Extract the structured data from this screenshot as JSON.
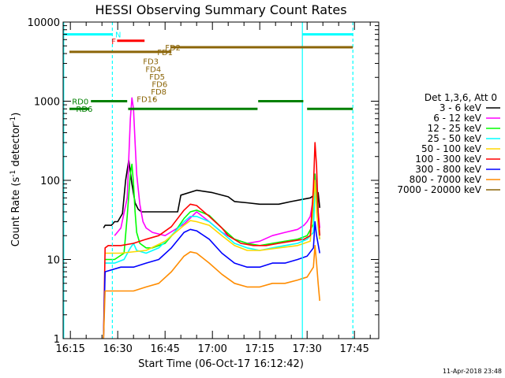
{
  "chart_data": {
    "type": "line",
    "title": "HESSI Observing Summary Count Rates",
    "xlabel": "Start Time (06-Oct-17 16:12:42)",
    "ylabel_parts": [
      "Count Rate (s",
      "-1",
      " detector",
      "-1",
      ")"
    ],
    "yscale": "log",
    "ylim": [
      1,
      10000
    ],
    "xlim_minutes": [
      -2.3,
      97.7
    ],
    "x_ticks": [
      {
        "label": "16:15",
        "minute": 0
      },
      {
        "label": "16:30",
        "minute": 15
      },
      {
        "label": "16:45",
        "minute": 30
      },
      {
        "label": "17:00",
        "minute": 45
      },
      {
        "label": "17:15",
        "minute": 60
      },
      {
        "label": "17:30",
        "minute": 75
      },
      {
        "label": "17:45",
        "minute": 90
      }
    ],
    "y_ticks": [
      {
        "label": "1",
        "value": 1
      },
      {
        "label": "10",
        "value": 10
      },
      {
        "label": "100",
        "value": 100
      },
      {
        "label": "1000",
        "value": 1000
      },
      {
        "label": "10000",
        "value": 10000
      }
    ],
    "legend": {
      "title": "Det 1,3,6, Att 0",
      "position": "right",
      "entries": [
        {
          "name": "3 - 6 keV",
          "color": "#000000"
        },
        {
          "name": "6 - 12 keV",
          "color": "#ff00ff"
        },
        {
          "name": "12 - 25 keV",
          "color": "#00ff00"
        },
        {
          "name": "25 - 50 keV",
          "color": "#00ffff"
        },
        {
          "name": "50 - 100 keV",
          "color": "#ffd700"
        },
        {
          "name": "100 - 300 keV",
          "color": "#ff0000"
        },
        {
          "name": "300 - 800 keV",
          "color": "#0000ff"
        },
        {
          "name": "800 - 7000 keV",
          "color": "#ff8c00"
        },
        {
          "name": "7000 - 20000 keV",
          "color": "#8b6508"
        }
      ]
    },
    "series": [
      {
        "name": "3 - 6 keV",
        "color": "#000000",
        "x": [
          10.5,
          11,
          13,
          14,
          15,
          16.5,
          17.5,
          18.5,
          19.5,
          20.5,
          21.5,
          22.5,
          23.5,
          24,
          26,
          30,
          34,
          35,
          40,
          45,
          50,
          52,
          56,
          60,
          66,
          70,
          74,
          76,
          77,
          77.5,
          78.5,
          79
        ],
        "y": [
          25,
          27,
          27,
          30,
          30,
          38,
          100,
          180,
          90,
          52,
          43,
          40,
          40,
          40,
          40,
          40,
          40,
          65,
          75,
          70,
          62,
          54,
          52,
          50,
          50,
          54,
          58,
          60,
          64,
          65,
          70,
          45
        ]
      },
      {
        "name": "6 - 12 keV",
        "color": "#ff00ff",
        "x": [
          14,
          16,
          18,
          19,
          19.5,
          20,
          20.5,
          21,
          22,
          23,
          24,
          26,
          30,
          36,
          40,
          44,
          48,
          52,
          56,
          60,
          64,
          68,
          72,
          74,
          75,
          76,
          77,
          77.5,
          78,
          78.5,
          79
        ],
        "y": [
          20,
          25,
          60,
          600,
          1100,
          800,
          300,
          120,
          50,
          30,
          25,
          22,
          20,
          28,
          40,
          30,
          22,
          18,
          16,
          17,
          20,
          22,
          24,
          27,
          30,
          35,
          60,
          120,
          80,
          40,
          25
        ]
      },
      {
        "name": "12 - 25 keV",
        "color": "#00ff00",
        "x": [
          11,
          14,
          17,
          18,
          19,
          19.5,
          20,
          20.5,
          21,
          22,
          24,
          26,
          30,
          33,
          36,
          38,
          40,
          44,
          48,
          52,
          56,
          60,
          64,
          68,
          72,
          75,
          77,
          77.5,
          78,
          78.5,
          79
        ],
        "y": [
          10,
          10,
          12,
          35,
          120,
          160,
          90,
          40,
          22,
          16,
          14,
          14,
          16,
          22,
          33,
          40,
          42,
          36,
          25,
          18,
          16,
          15,
          16,
          17,
          18,
          20,
          28,
          120,
          60,
          30,
          20
        ]
      },
      {
        "name": "25 - 50 keV",
        "color": "#00ffff",
        "x": [
          11,
          14,
          17,
          19,
          20,
          21,
          24,
          28,
          32,
          36,
          38,
          40,
          44,
          48,
          52,
          56,
          60,
          64,
          68,
          72,
          75,
          77,
          77.5,
          78,
          78.5,
          79
        ],
        "y": [
          9,
          9,
          10,
          14,
          16,
          13,
          12,
          14,
          20,
          30,
          35,
          35,
          30,
          22,
          16,
          14,
          13,
          14,
          15,
          16,
          18,
          22,
          90,
          45,
          25,
          18
        ]
      },
      {
        "name": "50 - 100 keV",
        "color": "#ffd700",
        "x": [
          11,
          16,
          24,
          30,
          36,
          38,
          40,
          44,
          48,
          52,
          56,
          60,
          66,
          72,
          76,
          77.5,
          78,
          79
        ],
        "y": [
          12,
          12,
          13,
          17,
          27,
          31,
          30,
          27,
          20,
          15,
          13,
          13,
          14,
          15,
          17,
          100,
          40,
          18
        ]
      },
      {
        "name": "100 - 300 keV",
        "color": "#ff0000",
        "x": [
          10.5,
          11,
          12,
          16,
          20,
          24,
          28,
          32,
          36,
          38,
          40,
          44,
          48,
          50,
          54,
          58,
          62,
          66,
          70,
          74,
          76,
          77,
          77.5,
          78,
          78.5,
          79
        ],
        "y": [
          1,
          14,
          15,
          15,
          16,
          18,
          20,
          26,
          42,
          50,
          48,
          35,
          25,
          20,
          16,
          15,
          15,
          16,
          17,
          18,
          20,
          80,
          300,
          150,
          40,
          20
        ]
      },
      {
        "name": "300 - 800 keV",
        "color": "#0000ff",
        "x": [
          10.5,
          11,
          16,
          20,
          24,
          28,
          32,
          36,
          38,
          40,
          44,
          48,
          52,
          56,
          60,
          64,
          68,
          72,
          75,
          77,
          77.5,
          78,
          79
        ],
        "y": [
          1,
          7,
          8,
          8,
          9,
          10,
          14,
          22,
          24,
          23,
          18,
          12,
          9,
          8,
          8,
          9,
          9,
          10,
          11,
          14,
          30,
          20,
          12
        ]
      },
      {
        "name": "800 - 7000 keV",
        "color": "#ff8c00",
        "x": [
          10.5,
          11,
          16,
          20,
          24,
          28,
          32,
          36,
          38,
          40,
          44,
          48,
          52,
          56,
          60,
          64,
          68,
          72,
          75,
          77,
          77.5,
          78,
          78.5,
          79
        ],
        "y": [
          1,
          4,
          4,
          4,
          4.5,
          5,
          7,
          11,
          12.5,
          12,
          9,
          6.5,
          5,
          4.5,
          4.5,
          5,
          5,
          5.5,
          6,
          8,
          15,
          9,
          5,
          3
        ]
      },
      {
        "name": "7000 - 20000 keV",
        "color": "#8b6508",
        "x": [],
        "y": []
      }
    ],
    "flag_bars": [
      {
        "label": "N",
        "color": "#00ffff",
        "y": 7000,
        "segments": [
          [
            -2.3,
            13.3
          ],
          [
            73.5,
            89.5
          ]
        ],
        "label_minute": 14.2
      },
      {
        "label": "F",
        "color": "#ff0000",
        "y": 5800,
        "segments": [
          [
            14.8,
            23.5
          ]
        ],
        "label_minute": 13.0
      },
      {
        "label": "FD1",
        "color": "#8b6508",
        "y": 4200,
        "segments": [
          [
            -0.3,
            32.0
          ]
        ],
        "label_minute": 27.5
      },
      {
        "label": "FD2",
        "color": "#8b6508",
        "y": 4800,
        "segments": [
          [
            31.8,
            89.5
          ]
        ],
        "label_minute": 30.0
      },
      {
        "label": "FD3",
        "color": "#8b6508",
        "label_minute": 23.0,
        "label_y": 3200
      },
      {
        "label": "FD4",
        "color": "#8b6508",
        "label_minute": 23.8,
        "label_y": 2550
      },
      {
        "label": "FD5",
        "color": "#8b6508",
        "label_minute": 25.0,
        "label_y": 2050
      },
      {
        "label": "FD6",
        "color": "#8b6508",
        "label_minute": 25.8,
        "label_y": 1650
      },
      {
        "label": "FD8",
        "color": "#8b6508",
        "label_minute": 25.5,
        "label_y": 1330
      },
      {
        "label": "FD16",
        "color": "#8b6508",
        "label_minute": 21.0,
        "label_y": 1070,
        "marker_minute": 26.5
      },
      {
        "label": "RD0",
        "color": "#008000",
        "y": 1000,
        "segments": [
          [
            6.5,
            18.0
          ],
          [
            59.5,
            73.8
          ]
        ],
        "label_minute": 0.5
      },
      {
        "label": "RD6",
        "color": "#008000",
        "y": 800,
        "segments": [
          [
            -0.3,
            6.0
          ],
          [
            18.3,
            59.3
          ],
          [
            75.0,
            89.5
          ]
        ],
        "label_minute": 1.8
      }
    ],
    "vertical_lines": [
      {
        "minute": -2.1,
        "color": "#00ffff",
        "style": "solid"
      },
      {
        "minute": 13.3,
        "color": "#00ffff",
        "style": "dashed"
      },
      {
        "minute": 73.5,
        "color": "#00ffff",
        "style": "solid"
      },
      {
        "minute": 89.5,
        "color": "#00ffff",
        "style": "dashed"
      }
    ],
    "timestamp": "11-Apr-2018 23:48"
  }
}
